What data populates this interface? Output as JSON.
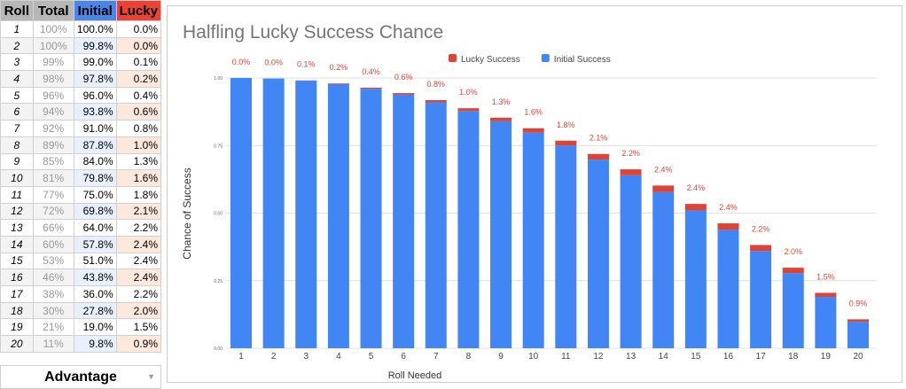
{
  "sheet": {
    "headers": [
      "Roll",
      "Total",
      "Initial",
      "Lucky"
    ],
    "rows": [
      [
        "1",
        "100%",
        "100.0%",
        "0.0%"
      ],
      [
        "2",
        "100%",
        "99.8%",
        "0.0%"
      ],
      [
        "3",
        "99%",
        "99.0%",
        "0.1%"
      ],
      [
        "4",
        "98%",
        "97.8%",
        "0.2%"
      ],
      [
        "5",
        "96%",
        "96.0%",
        "0.4%"
      ],
      [
        "6",
        "94%",
        "93.8%",
        "0.6%"
      ],
      [
        "7",
        "92%",
        "91.0%",
        "0.8%"
      ],
      [
        "8",
        "89%",
        "87.8%",
        "1.0%"
      ],
      [
        "9",
        "85%",
        "84.0%",
        "1.3%"
      ],
      [
        "10",
        "81%",
        "79.8%",
        "1.6%"
      ],
      [
        "11",
        "77%",
        "75.0%",
        "1.8%"
      ],
      [
        "12",
        "72%",
        "69.8%",
        "2.1%"
      ],
      [
        "13",
        "66%",
        "64.0%",
        "2.2%"
      ],
      [
        "14",
        "60%",
        "57.8%",
        "2.4%"
      ],
      [
        "15",
        "53%",
        "51.0%",
        "2.4%"
      ],
      [
        "16",
        "46%",
        "43.8%",
        "2.4%"
      ],
      [
        "17",
        "38%",
        "36.0%",
        "2.2%"
      ],
      [
        "18",
        "30%",
        "27.8%",
        "2.0%"
      ],
      [
        "19",
        "21%",
        "19.0%",
        "1.5%"
      ],
      [
        "20",
        "11%",
        "9.8%",
        "0.9%"
      ]
    ],
    "dropdown_value": "Advantage"
  },
  "chart_data": {
    "type": "bar",
    "stacked": true,
    "title": "Halfling Lucky Success Chance",
    "xlabel": "Roll Needed",
    "ylabel": "Chance of Success",
    "ylim": [
      0,
      1
    ],
    "yticks": [
      "0.00",
      "0.25",
      "0.50",
      "0.75",
      "1.00"
    ],
    "grid": true,
    "legend": "top",
    "categories": [
      "1",
      "2",
      "3",
      "4",
      "5",
      "6",
      "7",
      "8",
      "9",
      "10",
      "11",
      "12",
      "13",
      "14",
      "15",
      "16",
      "17",
      "18",
      "19",
      "20"
    ],
    "series": [
      {
        "name": "Initial Success",
        "color": "#4285f4",
        "values": [
          1.0,
          0.998,
          0.99,
          0.978,
          0.96,
          0.938,
          0.91,
          0.878,
          0.84,
          0.798,
          0.75,
          0.698,
          0.64,
          0.578,
          0.51,
          0.438,
          0.36,
          0.278,
          0.19,
          0.098
        ]
      },
      {
        "name": "Lucky Success",
        "color": "#db4437",
        "values": [
          0.0,
          0.0,
          0.001,
          0.002,
          0.004,
          0.006,
          0.008,
          0.01,
          0.013,
          0.016,
          0.018,
          0.021,
          0.022,
          0.024,
          0.024,
          0.024,
          0.022,
          0.02,
          0.015,
          0.009
        ]
      }
    ],
    "data_labels": [
      "0.0%",
      "0.0%",
      "0.1%",
      "0.2%",
      "0.4%",
      "0.6%",
      "0.8%",
      "1.0%",
      "1.3%",
      "1.6%",
      "1.8%",
      "2.1%",
      "2.2%",
      "2.4%",
      "2.4%",
      "2.4%",
      "2.2%",
      "2.0%",
      "1.5%",
      "0.9%"
    ]
  }
}
